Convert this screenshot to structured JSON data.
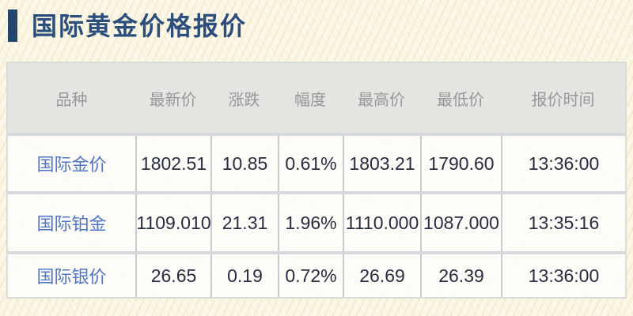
{
  "header": {
    "title": "国际黄金价格报价",
    "accent_color": "#24466e",
    "title_color": "#2c4e7d"
  },
  "table": {
    "columns": [
      {
        "key": "instrument",
        "label": "品种"
      },
      {
        "key": "last",
        "label": "最新价"
      },
      {
        "key": "change",
        "label": "涨跌"
      },
      {
        "key": "change_pct",
        "label": "幅度"
      },
      {
        "key": "high",
        "label": "最高价"
      },
      {
        "key": "low",
        "label": "最低价"
      },
      {
        "key": "time",
        "label": "报价时间"
      }
    ],
    "rows": [
      {
        "instrument": "国际金价",
        "last": "1802.51",
        "change": "10.85",
        "change_pct": "0.61%",
        "high": "1803.21",
        "low": "1790.60",
        "time": "13:36:00"
      },
      {
        "instrument": "国际铂金",
        "last": "1109.010",
        "change": "21.31",
        "change_pct": "1.96%",
        "high": "1110.000",
        "low": "1087.000",
        "time": "13:35:16"
      },
      {
        "instrument": "国际银价",
        "last": "26.65",
        "change": "0.19",
        "change_pct": "0.72%",
        "high": "26.69",
        "low": "26.39",
        "time": "13:36:00"
      }
    ]
  },
  "colors": {
    "page_background": "#fbf7e9",
    "header_row_background": "#e6e9e5",
    "row_background": "#f6f7f2",
    "header_text": "#95979a",
    "instrument_link": "#4d75c9",
    "value_text": "#282c40",
    "row_separator": "#d6dadd",
    "column_divider": "#c7ccd0"
  }
}
